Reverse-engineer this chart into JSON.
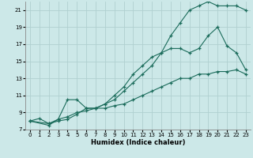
{
  "xlabel": "Humidex (Indice chaleur)",
  "background_color": "#cce8e8",
  "grid_color": "#b0d0d0",
  "line_color": "#1a6b5a",
  "xlim": [
    -0.5,
    23.5
  ],
  "ylim": [
    7,
    22
  ],
  "yticks": [
    7,
    9,
    11,
    13,
    15,
    17,
    19,
    21
  ],
  "xticks": [
    0,
    1,
    2,
    3,
    4,
    5,
    6,
    7,
    8,
    9,
    10,
    11,
    12,
    13,
    14,
    15,
    16,
    17,
    18,
    19,
    20,
    21,
    22,
    23
  ],
  "line1_x": [
    0,
    1,
    2,
    3,
    4,
    5,
    6,
    7,
    8,
    9,
    10,
    11,
    12,
    13,
    14,
    15,
    16,
    17,
    18,
    19,
    20,
    21,
    22,
    23
  ],
  "line1_y": [
    8.0,
    8.3,
    7.7,
    8.0,
    8.2,
    8.8,
    9.5,
    9.5,
    10.0,
    10.5,
    11.5,
    12.5,
    13.5,
    14.5,
    16.0,
    18.0,
    19.5,
    21.0,
    21.5,
    22.0,
    21.5,
    21.5,
    21.5,
    21.0
  ],
  "line2_x": [
    0,
    2,
    3,
    4,
    5,
    6,
    7,
    8,
    9,
    10,
    11,
    12,
    13,
    14,
    15,
    16,
    17,
    18,
    19,
    20,
    21,
    22,
    23
  ],
  "line2_y": [
    8.0,
    7.5,
    8.2,
    10.5,
    10.5,
    9.5,
    9.5,
    10.0,
    11.0,
    12.0,
    13.5,
    14.5,
    15.5,
    16.0,
    16.5,
    16.5,
    16.0,
    16.5,
    18.0,
    19.0,
    16.8,
    16.0,
    14.0
  ],
  "line3_x": [
    0,
    2,
    3,
    4,
    5,
    6,
    7,
    8,
    9,
    10,
    11,
    12,
    13,
    14,
    15,
    16,
    17,
    18,
    19,
    20,
    21,
    22,
    23
  ],
  "line3_y": [
    8.0,
    7.7,
    8.2,
    8.5,
    9.0,
    9.2,
    9.5,
    9.5,
    9.8,
    10.0,
    10.5,
    11.0,
    11.5,
    12.0,
    12.5,
    13.0,
    13.0,
    13.5,
    13.5,
    13.8,
    13.8,
    14.0,
    13.5
  ]
}
